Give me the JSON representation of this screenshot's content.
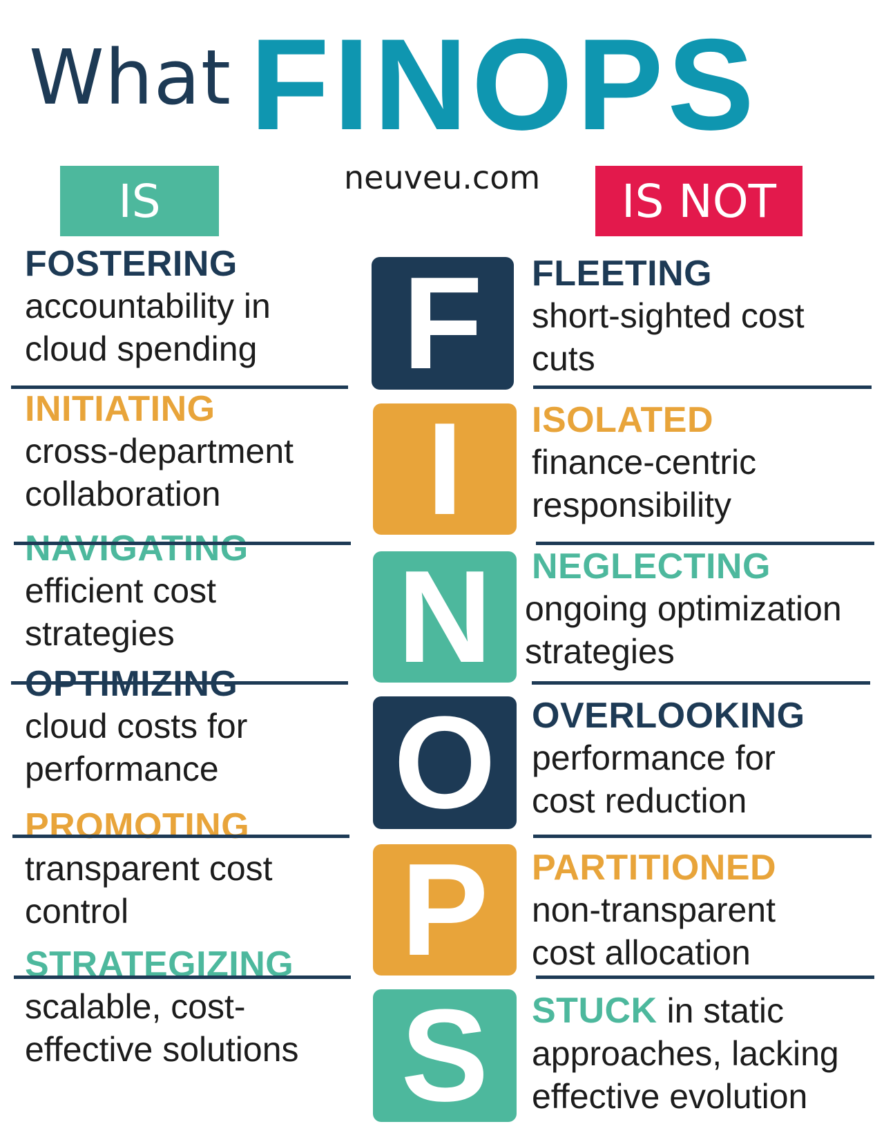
{
  "header": {
    "what": "What",
    "finops": "FINOPS",
    "site": "neuveu.com",
    "is_label": "IS",
    "isnot_label": "IS NOT"
  },
  "colors": {
    "navy": "#1d3a55",
    "orange": "#e8a43a",
    "teal": "#4db89d",
    "brand_blue": "#0f96b0",
    "is_badge": "#4db89d",
    "isnot_badge": "#e3194c"
  },
  "letters": [
    "F",
    "I",
    "N",
    "O",
    "P",
    "S"
  ],
  "is_items": [
    {
      "keyword": "FOSTERING",
      "line1": "accountability in",
      "line2": "cloud spending",
      "color": "navy"
    },
    {
      "keyword": "INITIATING",
      "line1": "cross-department",
      "line2": "collaboration",
      "color": "orange"
    },
    {
      "keyword": "NAVIGATING",
      "line1": "efficient cost",
      "line2": "strategies",
      "color": "teal"
    },
    {
      "keyword": "OPTIMIZING",
      "line1": "cloud costs for",
      "line2": "performance",
      "color": "navy"
    },
    {
      "keyword": "PROMOTING",
      "line1": "transparent cost",
      "line2": "control",
      "color": "orange"
    },
    {
      "keyword": "STRATEGIZING",
      "line1": "scalable, cost-",
      "line2": "effective solutions",
      "color": "teal"
    }
  ],
  "isnot_items": [
    {
      "keyword": "FLEETING",
      "line1": "short-sighted cost",
      "line2": "cuts",
      "color": "navy"
    },
    {
      "keyword": "ISOLATED",
      "line1": "finance-centric",
      "line2": "responsibility",
      "color": "orange"
    },
    {
      "keyword": "NEGLECTING",
      "line1": "ongoing optimization",
      "line2": "strategies",
      "color": "teal"
    },
    {
      "keyword": "OVERLOOKING",
      "line1": "performance for",
      "line2": "cost reduction",
      "color": "navy"
    },
    {
      "keyword": "PARTITIONED",
      "line1": "non-transparent",
      "line2": "cost allocation",
      "color": "orange"
    },
    {
      "keyword": "STUCK",
      "inline_tail": " in static",
      "line1": "approaches, lacking",
      "line2": "effective evolution",
      "color": "teal"
    }
  ]
}
